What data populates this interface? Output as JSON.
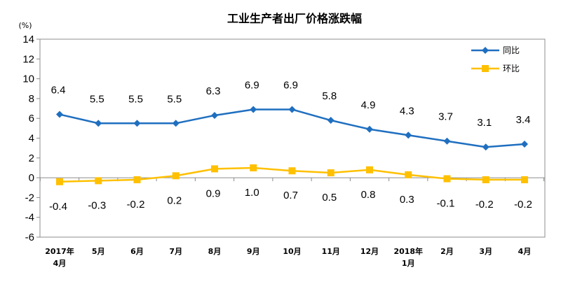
{
  "chart_data": {
    "type": "line",
    "title": "工业生产者出厂价格涨跌幅",
    "unit": "(%)",
    "categories": [
      [
        "2017年",
        "4月"
      ],
      [
        "5月"
      ],
      [
        "6月"
      ],
      [
        "7月"
      ],
      [
        "8月"
      ],
      [
        "9月"
      ],
      [
        "10月"
      ],
      [
        "11月"
      ],
      [
        "12月"
      ],
      [
        "2018年",
        "1月"
      ],
      [
        "2月"
      ],
      [
        "3月"
      ],
      [
        "4月"
      ]
    ],
    "ylim": [
      -6,
      14
    ],
    "yticks": [
      -6,
      -4,
      -2,
      0,
      2,
      4,
      6,
      8,
      10,
      12,
      14
    ],
    "legend_position": "top-right",
    "series": [
      {
        "name": "同比",
        "color": "#1f6fc0",
        "marker": "diamond",
        "values": [
          6.4,
          5.5,
          5.5,
          5.5,
          6.3,
          6.9,
          6.9,
          5.8,
          4.9,
          4.3,
          3.7,
          3.1,
          3.4
        ],
        "labels": [
          "6.4",
          "5.5",
          "5.5",
          "5.5",
          "6.3",
          "6.9",
          "6.9",
          "5.8",
          "4.9",
          "4.3",
          "3.7",
          "3.1",
          "3.4"
        ]
      },
      {
        "name": "环比",
        "color": "#ffc000",
        "marker": "square",
        "values": [
          -0.4,
          -0.3,
          -0.2,
          0.2,
          0.9,
          1.0,
          0.7,
          0.5,
          0.8,
          0.3,
          -0.1,
          -0.2,
          -0.2
        ],
        "labels": [
          "-0.4",
          "-0.3",
          "-0.2",
          "0.2",
          "0.9",
          "1.0",
          "0.7",
          "0.5",
          "0.8",
          "0.3",
          "-0.1",
          "-0.2",
          "-0.2"
        ]
      }
    ]
  }
}
